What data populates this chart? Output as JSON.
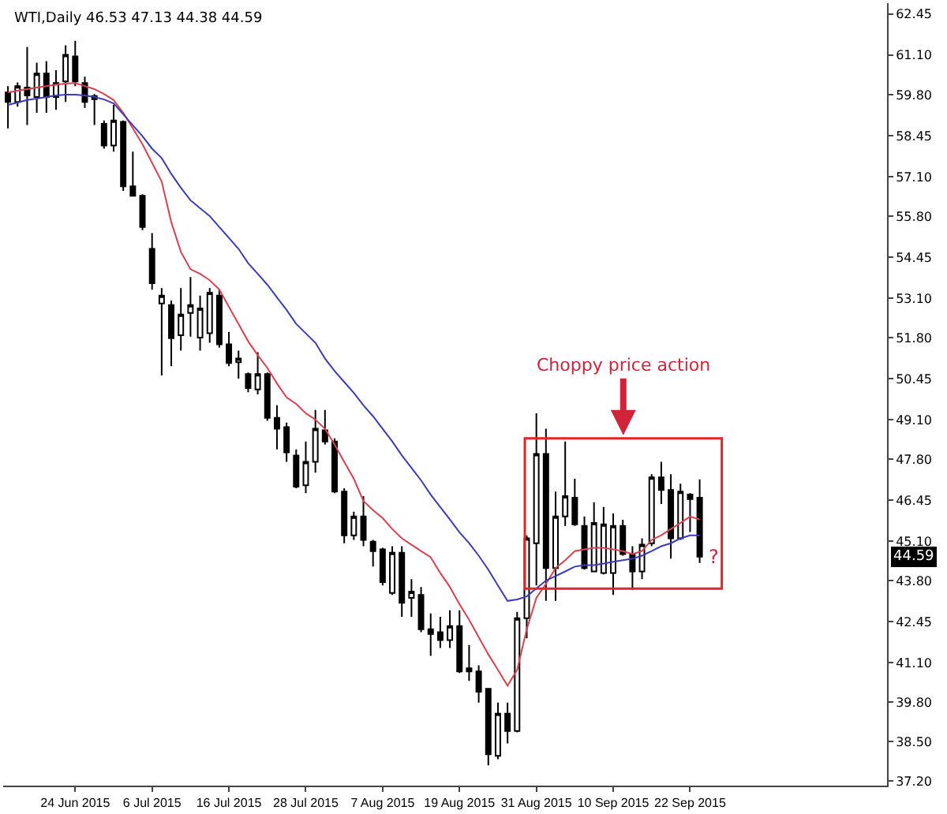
{
  "chart_data": {
    "type": "candlestick",
    "title": "WTI,Daily 46.53 47.13 44.38 44.59",
    "categories": [
      null,
      null,
      null,
      null,
      null,
      null,
      null,
      "24 Jun 2015",
      null,
      null,
      null,
      null,
      null,
      null,
      null,
      "6 Jul 2015",
      null,
      null,
      null,
      null,
      null,
      null,
      null,
      "16 Jul 2015",
      null,
      null,
      null,
      null,
      null,
      null,
      null,
      "28 Jul 2015",
      null,
      null,
      null,
      null,
      null,
      null,
      null,
      "7 Aug 2015",
      null,
      null,
      null,
      null,
      null,
      null,
      null,
      "19 Aug 2015",
      null,
      null,
      null,
      null,
      null,
      null,
      null,
      "31 Aug 2015",
      null,
      null,
      null,
      null,
      null,
      null,
      null,
      "10 Sep 2015",
      null,
      null,
      null,
      null,
      null,
      null,
      null,
      "22 Sep 2015",
      null
    ],
    "ohlc": [
      [
        59.87,
        60.08,
        58.69,
        59.56
      ],
      [
        59.56,
        60.2,
        59.4,
        60.08
      ],
      [
        60.03,
        61.37,
        58.8,
        59.77
      ],
      [
        59.72,
        60.85,
        59.2,
        60.49
      ],
      [
        60.49,
        60.9,
        59.2,
        59.72
      ],
      [
        59.72,
        60.6,
        59.3,
        60.18
      ],
      [
        60.23,
        61.42,
        59.56,
        61.11
      ],
      [
        61.06,
        61.57,
        60.08,
        60.23
      ],
      [
        60.18,
        60.39,
        59.36,
        59.56
      ],
      [
        59.75,
        59.82,
        58.8,
        59.65
      ],
      [
        58.84,
        58.95,
        58.02,
        58.12
      ],
      [
        58.12,
        59.46,
        57.92,
        58.95
      ],
      [
        58.9,
        58.95,
        56.63,
        56.78
      ],
      [
        56.78,
        57.92,
        56.47,
        56.47
      ],
      [
        56.47,
        56.52,
        55.34,
        55.44
      ],
      [
        54.72,
        55.24,
        53.38,
        53.59
      ],
      [
        52.92,
        53.43,
        50.55,
        53.18
      ],
      [
        52.87,
        53.02,
        50.86,
        51.78
      ],
      [
        51.88,
        53.43,
        51.37,
        52.56
      ],
      [
        52.61,
        53.79,
        51.83,
        52.87
      ],
      [
        51.8,
        53.18,
        51.37,
        52.76
      ],
      [
        51.94,
        53.43,
        51.63,
        53.28
      ],
      [
        53.18,
        53.38,
        51.47,
        51.58
      ],
      [
        51.58,
        51.99,
        50.86,
        50.96
      ],
      [
        50.99,
        51.37,
        50.45,
        51.11
      ],
      [
        50.6,
        50.65,
        50.0,
        50.14
      ],
      [
        50.09,
        51.32,
        49.93,
        50.6
      ],
      [
        50.6,
        50.65,
        49.06,
        49.16
      ],
      [
        49.16,
        49.57,
        48.12,
        48.8
      ],
      [
        48.85,
        49.0,
        47.71,
        48.02
      ],
      [
        47.92,
        48.12,
        46.84,
        46.89
      ],
      [
        46.94,
        48.38,
        46.68,
        47.71
      ],
      [
        47.71,
        49.42,
        47.35,
        48.8
      ],
      [
        48.75,
        49.42,
        48.28,
        48.38
      ],
      [
        48.38,
        48.48,
        46.68,
        46.73
      ],
      [
        46.73,
        46.84,
        45.03,
        45.29
      ],
      [
        45.29,
        46.07,
        45.14,
        45.91
      ],
      [
        45.91,
        46.58,
        44.93,
        45.14
      ],
      [
        45.08,
        45.14,
        44.26,
        44.77
      ],
      [
        44.83,
        44.88,
        43.64,
        43.75
      ],
      [
        43.39,
        44.93,
        43.33,
        44.72
      ],
      [
        44.72,
        44.93,
        42.61,
        43.07
      ],
      [
        43.23,
        43.85,
        42.61,
        43.44
      ],
      [
        43.33,
        43.59,
        42.1,
        42.2
      ],
      [
        42.2,
        42.72,
        41.32,
        42.04
      ],
      [
        42.1,
        42.61,
        41.58,
        41.84
      ],
      [
        41.84,
        42.82,
        41.58,
        42.3
      ],
      [
        42.3,
        42.82,
        40.76,
        40.81
      ],
      [
        40.91,
        41.68,
        40.5,
        40.81
      ],
      [
        40.81,
        41.01,
        39.78,
        40.14
      ],
      [
        40.24,
        40.24,
        37.72,
        38.08
      ],
      [
        38.03,
        39.78,
        37.92,
        39.42
      ],
      [
        39.42,
        39.78,
        38.44,
        38.85
      ],
      [
        38.85,
        42.77,
        38.8,
        42.56
      ],
      [
        42.56,
        45.29,
        41.9,
        45.19
      ],
      [
        45.03,
        49.31,
        43.64,
        47.97
      ],
      [
        47.97,
        48.8,
        43.13,
        44.21
      ],
      [
        44.21,
        46.73,
        43.13,
        45.91
      ],
      [
        45.91,
        48.38,
        45.6,
        46.58
      ],
      [
        46.53,
        47.15,
        45.6,
        45.65
      ],
      [
        45.6,
        45.91,
        44.16,
        44.21
      ],
      [
        44.1,
        46.38,
        44.1,
        45.7
      ],
      [
        44.05,
        46.22,
        44.0,
        45.65
      ],
      [
        44.05,
        46.01,
        43.33,
        45.6
      ],
      [
        45.6,
        45.8,
        44.62,
        44.67
      ],
      [
        44.67,
        44.93,
        43.49,
        44.1
      ],
      [
        44.1,
        45.19,
        43.85,
        44.98
      ],
      [
        45.03,
        47.3,
        44.93,
        47.2
      ],
      [
        47.2,
        47.71,
        46.32,
        46.78
      ],
      [
        46.78,
        47.3,
        44.52,
        45.19
      ],
      [
        45.19,
        46.99,
        45.14,
        46.73
      ],
      [
        46.63,
        46.68,
        45.4,
        46.48
      ],
      [
        46.53,
        47.13,
        44.38,
        44.59
      ]
    ],
    "series": [
      {
        "type": "line",
        "color": "#d9424e",
        "values": [
          59.87,
          59.93,
          59.98,
          60.03,
          60.08,
          60.13,
          60.16,
          60.18,
          60.08,
          59.98,
          59.82,
          59.62,
          59.2,
          58.69,
          58.17,
          57.55,
          56.94,
          55.6,
          54.62,
          54.05,
          53.9,
          53.69,
          53.38,
          52.81,
          52.25,
          51.68,
          51.22,
          50.8,
          50.29,
          49.83,
          49.62,
          49.31,
          49.1,
          48.8,
          48.28,
          47.71,
          47.15,
          46.42,
          46.12,
          45.86,
          45.5,
          45.19,
          44.98,
          44.77,
          44.57,
          44.05,
          43.59,
          43.02,
          42.51,
          41.94,
          41.37,
          40.86,
          40.34,
          40.86,
          42.2,
          43.23,
          43.69,
          44.21,
          44.47,
          44.77,
          44.83,
          44.88,
          44.88,
          44.83,
          44.77,
          44.67,
          44.77,
          45.14,
          45.29,
          45.5,
          45.7,
          45.91,
          45.81
        ]
      },
      {
        "type": "line",
        "color": "#3c3cb4",
        "values": [
          59.46,
          59.54,
          59.62,
          59.67,
          59.72,
          59.77,
          59.8,
          59.8,
          59.77,
          59.72,
          59.64,
          59.51,
          59.15,
          58.79,
          58.43,
          58.02,
          57.71,
          57.19,
          56.73,
          56.32,
          56.06,
          55.8,
          55.44,
          55.08,
          54.72,
          54.25,
          53.9,
          53.54,
          53.12,
          52.71,
          52.25,
          51.94,
          51.63,
          51.11,
          50.7,
          50.34,
          49.98,
          49.57,
          49.21,
          48.8,
          48.38,
          47.92,
          47.51,
          47.1,
          46.63,
          46.22,
          45.81,
          45.39,
          45.03,
          44.62,
          44.16,
          43.64,
          43.13,
          43.18,
          43.28,
          43.54,
          43.8,
          43.95,
          44.1,
          44.26,
          44.31,
          44.31,
          44.36,
          44.42,
          44.47,
          44.52,
          44.62,
          44.77,
          44.93,
          45.03,
          45.19,
          45.29,
          45.29
        ]
      }
    ],
    "ylim": [
      37.05,
      62.81
    ],
    "yticks": [
      62.45,
      {
        "value": 61.1,
        "label": "61.10"
      },
      {
        "value": 59.8,
        "label": "59.80"
      },
      58.45,
      {
        "value": 57.1,
        "label": "57.10"
      },
      {
        "value": 55.8,
        "label": "55.80"
      },
      54.45,
      {
        "value": 53.1,
        "label": "53.10"
      },
      {
        "value": 51.8,
        "label": "51.80"
      },
      50.45,
      {
        "value": 49.1,
        "label": "49.10"
      },
      {
        "value": 47.8,
        "label": "47.80"
      },
      46.45,
      {
        "value": 45.1,
        "label": "45.10"
      },
      {
        "value": 43.8,
        "label": "43.80"
      },
      42.45,
      {
        "value": 41.1,
        "label": "41.10"
      },
      {
        "value": 39.8,
        "label": "39.80"
      },
      {
        "value": 38.5,
        "label": "38.50"
      },
      {
        "value": 37.2,
        "label": "37.20"
      }
    ],
    "annotations": [
      "Choppy price action",
      "?",
      "44.59"
    ]
  }
}
